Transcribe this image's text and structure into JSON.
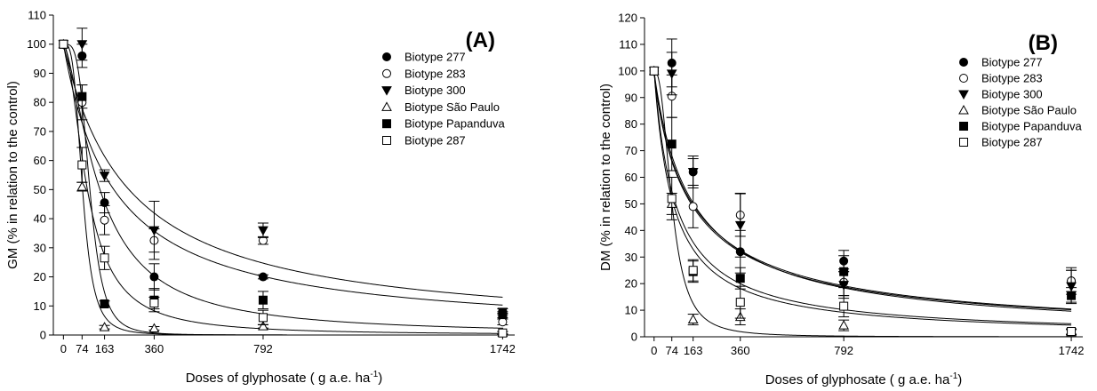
{
  "chart_data": [
    {
      "type": "scatter",
      "panel_label": "(A)",
      "ylabel": "GM (% in relation to the control)",
      "xlabel_main": "Doses of glyphosate ( g a.e. ha",
      "xlabel_sup": "-1",
      "xlabel_end": ")",
      "x_ticks": [
        "0",
        "74",
        "163",
        "360",
        "792",
        "1742"
      ],
      "y_ticks": [
        "0",
        "10",
        "20",
        "30",
        "40",
        "50",
        "60",
        "70",
        "80",
        "90",
        "100",
        "110"
      ],
      "ylim": [
        0,
        110
      ],
      "xlim": [
        -40,
        1790
      ],
      "legend_position": "top-right",
      "series": [
        {
          "name": "Biotype 277",
          "marker": "circle-filled",
          "x": [
            0,
            74,
            163,
            360,
            792,
            1742
          ],
          "y": [
            100,
            96,
            45.5,
            20,
            20,
            6.5
          ],
          "err": [
            0,
            4,
            3.5,
            4.5,
            0.7,
            1
          ],
          "fit": {
            "c50": 145,
            "b": 1.5
          }
        },
        {
          "name": "Biotype 283",
          "marker": "circle-open",
          "x": [
            0,
            74,
            163,
            360,
            792,
            1742
          ],
          "y": [
            100,
            80,
            39.5,
            32.5,
            32.5,
            4.5
          ],
          "err": [
            0,
            6,
            5,
            4,
            1.3,
            1
          ],
          "fit": {
            "c50": 200,
            "b": 1.0
          }
        },
        {
          "name": "Biotype 300",
          "marker": "triangle-down-filled",
          "x": [
            0,
            74,
            163,
            360,
            792,
            1742
          ],
          "y": [
            100,
            100,
            54.8,
            36,
            36,
            8
          ],
          "err": [
            0,
            5.5,
            2,
            10,
            2.5,
            1
          ],
          "fit": {
            "c50": 260,
            "b": 1.0
          }
        },
        {
          "name": "Biotype São Paulo",
          "marker": "triangle-up-open",
          "x": [
            0,
            74,
            163,
            360,
            792,
            1742
          ],
          "y": [
            100,
            51,
            2.7,
            2.3,
            3,
            0.8
          ],
          "err": [
            0,
            1.5,
            0.6,
            0.6,
            0.6,
            0.4
          ],
          "fit": {
            "c50": 76,
            "b": 3.5
          }
        },
        {
          "name": "Biotype Papanduva",
          "marker": "square-filled",
          "x": [
            0,
            74,
            163,
            360,
            792,
            1742
          ],
          "y": [
            100,
            82,
            10.7,
            12,
            12,
            7
          ],
          "err": [
            0,
            4,
            1,
            4,
            3,
            1
          ],
          "fit": {
            "c50": 105,
            "b": 4.0
          }
        },
        {
          "name": "Biotype 287",
          "marker": "square-open",
          "x": [
            0,
            74,
            163,
            360,
            792,
            1742
          ],
          "y": [
            100,
            58.5,
            26.5,
            11,
            6,
            0.7
          ],
          "err": [
            0,
            6,
            4,
            2,
            2.5,
            0.5
          ],
          "fit": {
            "c50": 95,
            "b": 1.8
          }
        }
      ]
    },
    {
      "type": "scatter",
      "panel_label": "(B)",
      "ylabel": "DM (% in relation to the control)",
      "xlabel_main": "Doses of glyphosate ( g a.e. ha",
      "xlabel_sup": "-1",
      "xlabel_end": ")",
      "x_ticks": [
        "0",
        "74",
        "163",
        "360",
        "792",
        "1742"
      ],
      "y_ticks": [
        "0",
        "10",
        "20",
        "30",
        "40",
        "50",
        "60",
        "70",
        "80",
        "90",
        "100",
        "110",
        "120"
      ],
      "ylim": [
        0,
        120
      ],
      "xlim": [
        -40,
        1790
      ],
      "legend_position": "top-right",
      "series": [
        {
          "name": "Biotype 277",
          "marker": "circle-filled",
          "x": [
            0,
            74,
            163,
            360,
            792,
            1742
          ],
          "y": [
            100,
            103,
            62,
            32,
            28.5,
            21
          ],
          "err": [
            0,
            9,
            5,
            8,
            4,
            5
          ],
          "fit": {
            "c50": 160,
            "b": 0.9
          }
        },
        {
          "name": "Biotype 283",
          "marker": "circle-open",
          "x": [
            0,
            74,
            163,
            360,
            792,
            1742
          ],
          "y": [
            100,
            90.5,
            49,
            45.8,
            20.5,
            21
          ],
          "err": [
            0,
            8,
            8,
            8,
            5,
            4
          ],
          "fit": {
            "c50": 165,
            "b": 0.95
          }
        },
        {
          "name": "Biotype 300",
          "marker": "triangle-down-filled",
          "x": [
            0,
            74,
            163,
            360,
            792,
            1742
          ],
          "y": [
            100,
            99,
            62,
            42,
            19.5,
            19
          ],
          "err": [
            0,
            8,
            6,
            12,
            5,
            6
          ],
          "fit": {
            "c50": 155,
            "b": 0.9
          }
        },
        {
          "name": "Biotype São Paulo",
          "marker": "triangle-up-open",
          "x": [
            0,
            74,
            163,
            360,
            792,
            1742
          ],
          "y": [
            100,
            50,
            6.5,
            7.5,
            4.3,
            1.7
          ],
          "err": [
            0,
            4,
            2,
            3,
            2,
            1
          ],
          "fit": {
            "c50": 75,
            "b": 2.5
          }
        },
        {
          "name": "Biotype Papanduva",
          "marker": "square-filled",
          "x": [
            0,
            74,
            163,
            360,
            792,
            1742
          ],
          "y": [
            100,
            72.5,
            24.5,
            22,
            24.5,
            15.5
          ],
          "err": [
            0,
            10,
            4,
            4,
            6,
            3
          ],
          "fit": {
            "c50": 90,
            "b": 1.0
          }
        },
        {
          "name": "Biotype 287",
          "marker": "square-open",
          "x": [
            0,
            74,
            163,
            360,
            792,
            1742
          ],
          "y": [
            100,
            52,
            25,
            13,
            11.5,
            2
          ],
          "err": [
            0,
            8,
            4,
            6,
            4,
            1
          ],
          "fit": {
            "c50": 80,
            "b": 1.0
          }
        }
      ]
    }
  ]
}
